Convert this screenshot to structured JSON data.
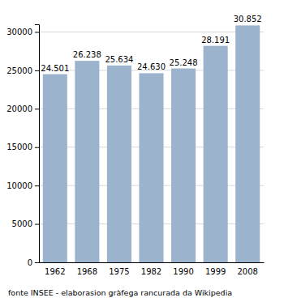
{
  "chart_data": {
    "type": "bar",
    "categories": [
      "1962",
      "1968",
      "1975",
      "1982",
      "1990",
      "1999",
      "2008"
    ],
    "values": [
      24501,
      26238,
      25634,
      24630,
      25248,
      28191,
      30852
    ],
    "value_labels": [
      "24.501",
      "26.238",
      "25.634",
      "24.630",
      "25.248",
      "28.191",
      "30.852"
    ],
    "data_labels": true,
    "color": "#9bb3cc",
    "ylim": [
      0,
      31000
    ],
    "yticks": [
      0,
      5000,
      10000,
      15000,
      20000,
      25000,
      30000
    ],
    "grid": true,
    "caption": "fonte INSEE - elaborasion gràfega rancurada da Wikipedia"
  }
}
